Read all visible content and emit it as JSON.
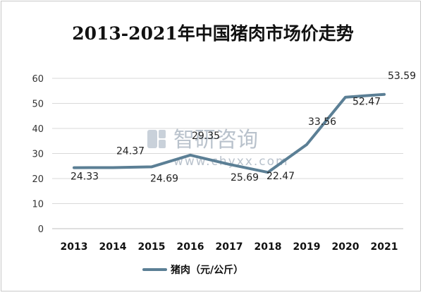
{
  "chart_data": {
    "type": "line",
    "title": "2013-2021年中国猪肉市场价走势",
    "categories": [
      "2013",
      "2014",
      "2015",
      "2016",
      "2017",
      "2018",
      "2019",
      "2020",
      "2021"
    ],
    "series": [
      {
        "name": "猪肉（元/公斤）",
        "values": [
          24.33,
          24.37,
          24.69,
          29.35,
          25.69,
          22.47,
          33.56,
          52.47,
          53.59
        ],
        "labels": [
          "24.33",
          "24.37",
          "24.69",
          "29.35",
          "25.69",
          "22.47",
          "33.56",
          "52.47",
          "53.59"
        ],
        "color": "#5b7f95"
      }
    ],
    "ylim": [
      0,
      60
    ],
    "yticks": [
      "0",
      "10",
      "20",
      "30",
      "40",
      "50",
      "60"
    ],
    "grid": true,
    "legend": "bottom"
  },
  "watermark": {
    "name": "智研咨询",
    "url": "www.chyxx.com",
    "color": "#b9c2cc"
  }
}
